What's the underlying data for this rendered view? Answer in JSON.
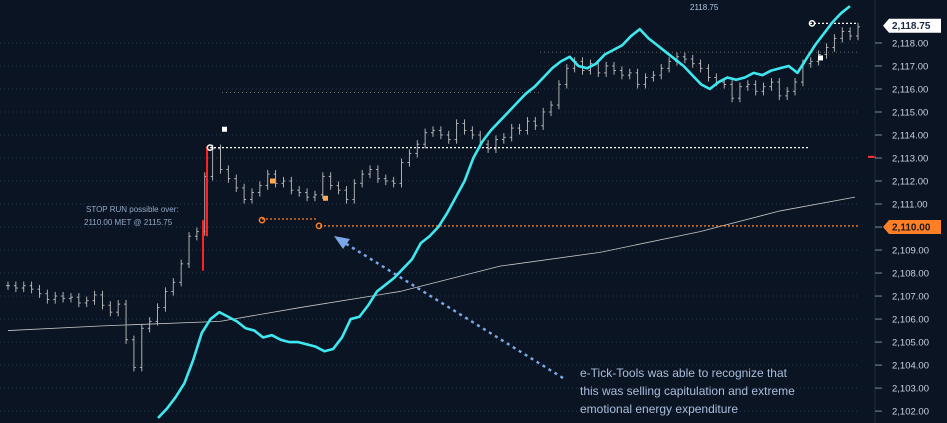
{
  "chart_data": {
    "type": "line",
    "y_axis": {
      "position": "right",
      "min": 2101.7,
      "max": 2119.65,
      "ticks": [
        2102,
        2103,
        2104,
        2105,
        2106,
        2107,
        2108,
        2109,
        2110,
        2111,
        2112,
        2113,
        2114,
        2115,
        2116,
        2117,
        2118
      ],
      "tick_labels": [
        "2,102.00",
        "2,103.00",
        "2,104.00",
        "2,105.00",
        "2,106.00",
        "2,107.00",
        "2,108.00",
        "2,109.00",
        "2,110.00",
        "2,111.00",
        "2,112.00",
        "2,113.00",
        "2,114.00",
        "2,115.00",
        "2,116.00",
        "2,117.00",
        "2,118.00"
      ],
      "grid": true
    },
    "price_badges": [
      {
        "label": "2,118.75",
        "value": 2118.75,
        "color": "#ffffff"
      },
      {
        "label": "2,110.00",
        "value": 2110.0,
        "color": "#ff7f27"
      }
    ],
    "colors": {
      "background": "#0b1422",
      "price_bars": "#bfbfbf",
      "indicator": "#3ee8f0",
      "moving_average": "#c8c8c8",
      "stop_level": "#ff7f27",
      "spike": "#ff2020",
      "annotation_text": "#9fb6d6",
      "arrow": "#7aa7e6"
    },
    "levels": [
      {
        "value": 2113.45,
        "color": "#ffffff",
        "style": "dotted"
      },
      {
        "value": 2110.05,
        "color": "#ff7f27",
        "style": "dotted"
      }
    ],
    "annotations": {
      "stop_run_line1": "STOP RUN possible over:",
      "stop_run_line2": "2110.00 MET @ 2115.75",
      "top_label": "2118.75",
      "note_line1": "e-Tick-Tools was able to recognize that",
      "note_line2": "this was selling capitulation and extreme",
      "note_line3": "emotional energy expenditure"
    },
    "series": [
      {
        "type": "bars",
        "values": [
          2107.45,
          2107.35,
          2107.45,
          2107.3,
          2107.1,
          2106.85,
          2107.0,
          2106.9,
          2106.95,
          2106.7,
          2106.8,
          2107.05,
          2106.6,
          2106.3,
          2106.65,
          2105.1,
          2103.9,
          2105.6,
          2105.9,
          2106.5,
          2107.2,
          2107.6,
          2108.4,
          2109.6,
          2109.8,
          2112.2,
          2113.4,
          2112.5,
          2112.1,
          2111.7,
          2111.2,
          2111.5,
          2111.8,
          2112.3,
          2111.9,
          2112.0,
          2111.6,
          2111.5,
          2111.3,
          2111.4,
          2112.2,
          2111.8,
          2111.6,
          2111.2,
          2111.9,
          2112.3,
          2112.5,
          2112.1,
          2112.0,
          2111.9,
          2112.8,
          2113.2,
          2113.6,
          2114.1,
          2114.2,
          2114.0,
          2113.8,
          2114.5,
          2114.2,
          2114.0,
          2113.6,
          2113.4,
          2113.8,
          2113.9,
          2114.3,
          2114.2,
          2114.6,
          2114.4,
          2115.0,
          2115.3,
          2116.2,
          2116.9,
          2117.2,
          2116.8,
          2117.1,
          2116.7,
          2117.0,
          2116.8,
          2116.6,
          2116.7,
          2116.2,
          2116.5,
          2116.6,
          2116.9,
          2117.2,
          2117.4,
          2117.3,
          2117.1,
          2116.9,
          2116.5,
          2116.3,
          2116.2,
          2115.6,
          2116.1,
          2116.2,
          2115.9,
          2116.1,
          2116.3,
          2115.7,
          2115.9,
          2116.3,
          2117.1,
          2117.2,
          2117.5,
          2117.8,
          2118.2,
          2118.5,
          2118.3,
          2118.7
        ],
        "x_range": [
          8,
          858
        ]
      },
      {
        "name": "",
        "type": "line",
        "values": [
          2101.7,
          2102.1,
          2102.6,
          2103.2,
          2104.2,
          2105.4,
          2106.0,
          2106.3,
          2106.1,
          2105.9,
          2105.6,
          2105.5,
          2105.2,
          2105.3,
          2105.1,
          2105.0,
          2105.0,
          2104.9,
          2104.8,
          2104.6,
          2104.7,
          2105.2,
          2106.0,
          2106.1,
          2106.6,
          2107.2,
          2107.5,
          2107.8,
          2108.2,
          2108.6,
          2109.3,
          2109.6,
          2110.0,
          2110.6,
          2111.3,
          2112.0,
          2113.0,
          2113.7,
          2114.2,
          2114.6,
          2115.0,
          2115.4,
          2115.8,
          2116.1,
          2116.5,
          2116.9,
          2117.2,
          2117.4,
          2117.0,
          2116.9,
          2117.1,
          2117.5,
          2117.7,
          2117.9,
          2118.3,
          2118.6,
          2118.2,
          2117.9,
          2117.6,
          2117.3,
          2117.0,
          2116.6,
          2116.2,
          2116.0,
          2116.3,
          2116.5,
          2116.4,
          2116.5,
          2116.7,
          2116.6,
          2116.8,
          2116.9,
          2117.0,
          2116.7,
          2117.3,
          2117.9,
          2118.4,
          2118.9,
          2119.3,
          2119.6
        ],
        "x_range": [
          158,
          850
        ]
      },
      {
        "name": "",
        "type": "line",
        "points": [
          [
            8,
            2105.5
          ],
          [
            100,
            2105.7
          ],
          [
            220,
            2105.9
          ],
          [
            300,
            2106.5
          ],
          [
            400,
            2107.2
          ],
          [
            500,
            2108.3
          ],
          [
            600,
            2108.9
          ],
          [
            700,
            2109.8
          ],
          [
            780,
            2110.7
          ],
          [
            855,
            2111.3
          ]
        ]
      }
    ]
  }
}
